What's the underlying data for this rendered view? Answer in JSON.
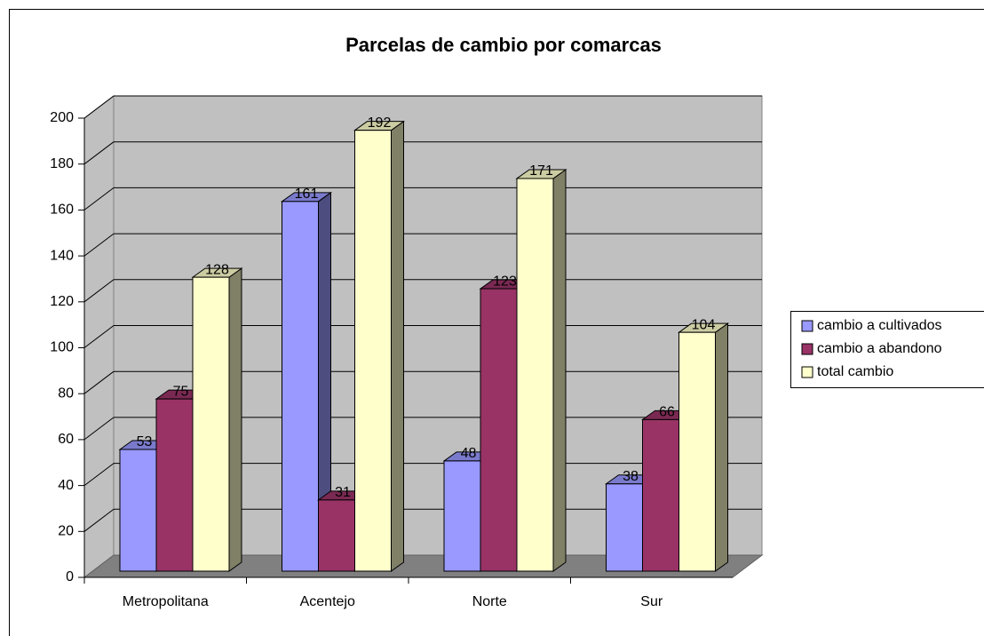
{
  "chart_data": {
    "type": "bar3d",
    "title": "Parcelas de cambio por comarcas",
    "categories": [
      "Metropolitana",
      "Acentejo",
      "Norte",
      "Sur"
    ],
    "series": [
      {
        "name": "cambio a cultivados",
        "color": "#9999ff",
        "values": [
          53,
          161,
          48,
          38
        ]
      },
      {
        "name": "cambio a abandono",
        "color": "#993366",
        "values": [
          75,
          31,
          123,
          66
        ]
      },
      {
        "name": "total cambio",
        "color": "#ffffcc",
        "values": [
          128,
          192,
          171,
          104
        ]
      }
    ],
    "ylim": [
      0,
      200
    ],
    "yticks": [
      0,
      20,
      40,
      60,
      80,
      100,
      120,
      140,
      160,
      180,
      200
    ],
    "grid": true,
    "legend": "right"
  }
}
